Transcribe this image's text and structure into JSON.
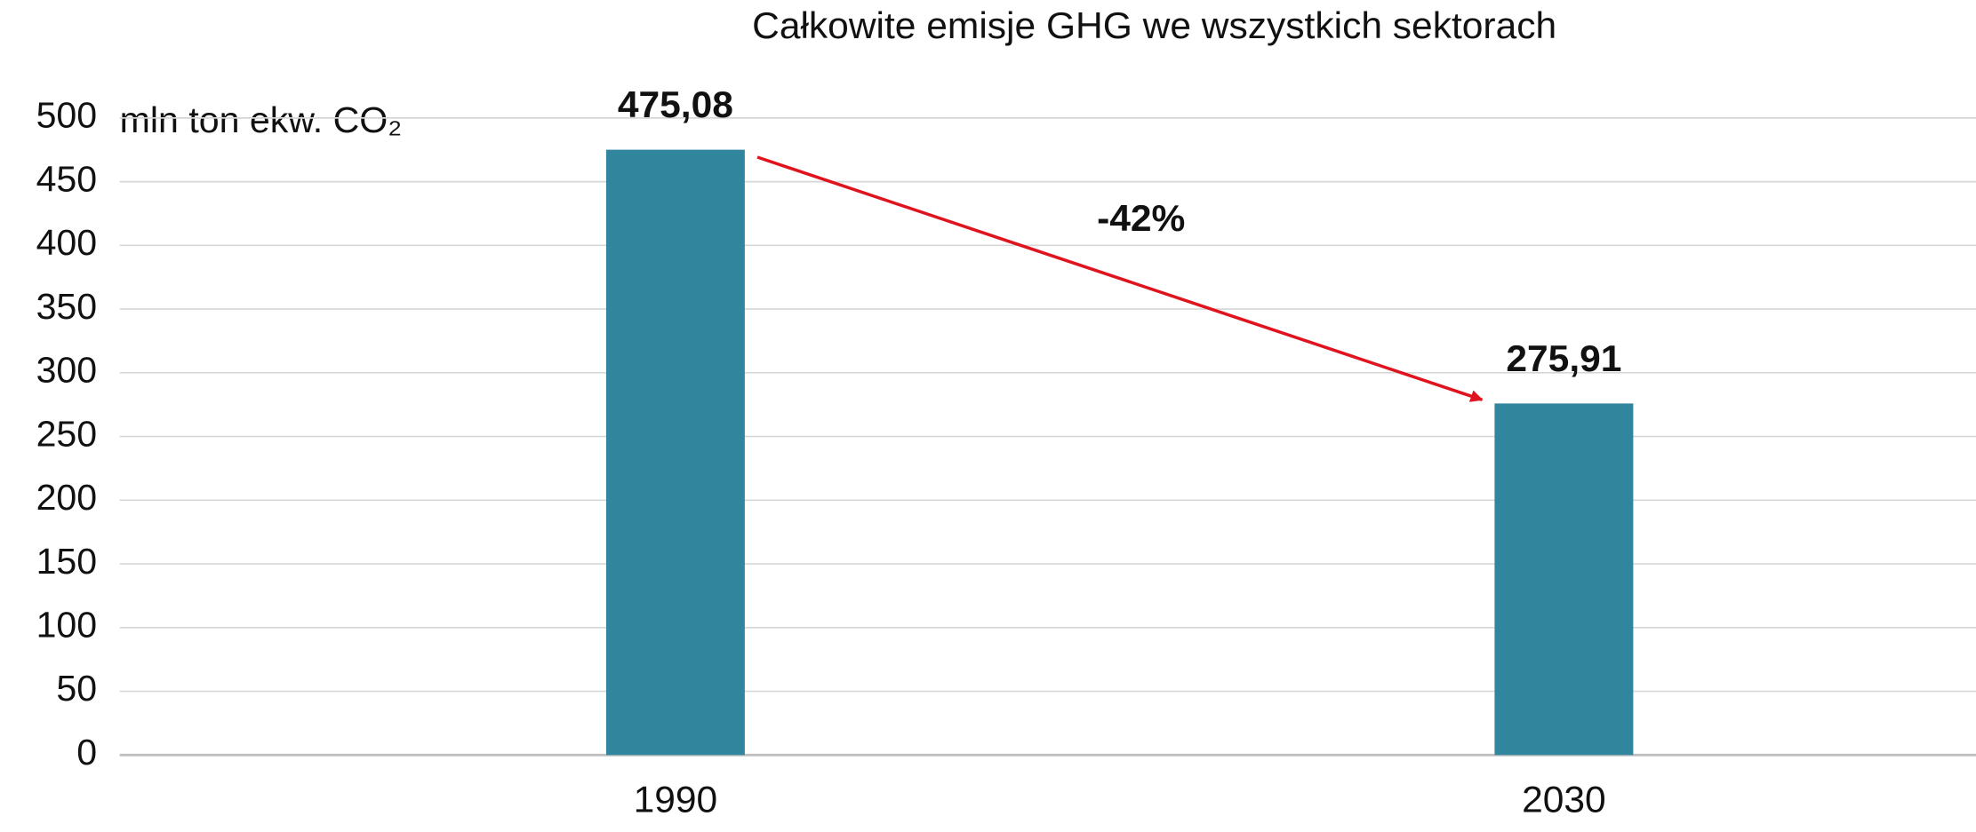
{
  "chart_data": {
    "type": "bar",
    "title": "Całkowite emisje GHG we wszystkich sektorach",
    "y_axis_label": "mln ton ekw. CO₂",
    "categories": [
      "1990",
      "2030"
    ],
    "values": [
      475.08,
      275.91
    ],
    "value_labels": [
      "475,08",
      "275,91"
    ],
    "color": "#31859c",
    "ylim": [
      0,
      500
    ],
    "yticks": [
      0,
      50,
      100,
      150,
      200,
      250,
      300,
      350,
      400,
      450,
      500
    ],
    "grid": true,
    "annotation": {
      "text": "-42%",
      "color": "#e0141e"
    }
  }
}
